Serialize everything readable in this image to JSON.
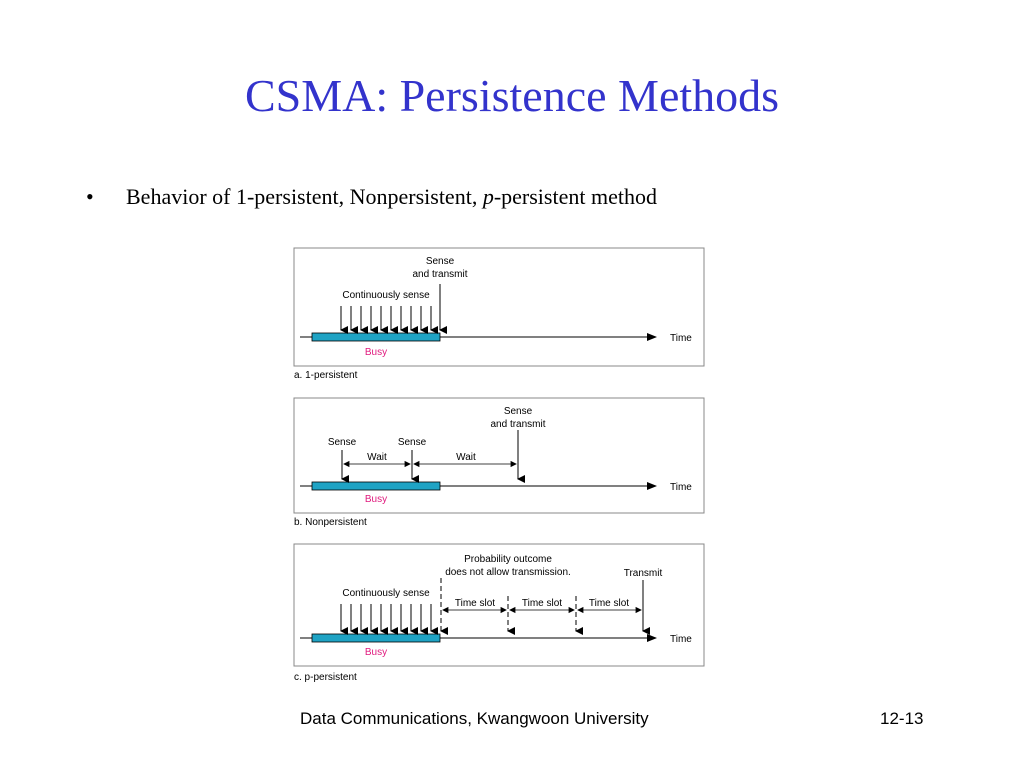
{
  "slide": {
    "title": "CSMA: Persistence Methods",
    "bullet": {
      "prefix": "Behavior of 1-persistent, Nonpersistent, ",
      "italic": "p",
      "suffix": "-persistent method"
    },
    "footer": {
      "course": "Data Communications, Kwangwoon University",
      "page": "12-13"
    }
  },
  "colors": {
    "title": "#3333cc",
    "busy_bar": "#1fa3c4",
    "busy_label": "#e0197d"
  },
  "diagram": {
    "time_label": "Time",
    "busy_label": "Busy",
    "panel_a": {
      "caption": "a. 1-persistent",
      "continuous_label": "Continuously sense",
      "transmit_line1": "Sense",
      "transmit_line2": "and transmit"
    },
    "panel_b": {
      "caption": "b. Nonpersistent",
      "sense1": "Sense",
      "sense2": "Sense",
      "wait1": "Wait",
      "wait2": "Wait",
      "transmit_line1": "Sense",
      "transmit_line2": "and transmit"
    },
    "panel_c": {
      "caption": "c. p-persistent",
      "continuous_label": "Continuously sense",
      "prob_line1": "Probability outcome",
      "prob_line2": "does not allow transmission.",
      "slot1": "Time slot",
      "slot2": "Time slot",
      "slot3": "Time slot",
      "transmit": "Transmit"
    }
  }
}
